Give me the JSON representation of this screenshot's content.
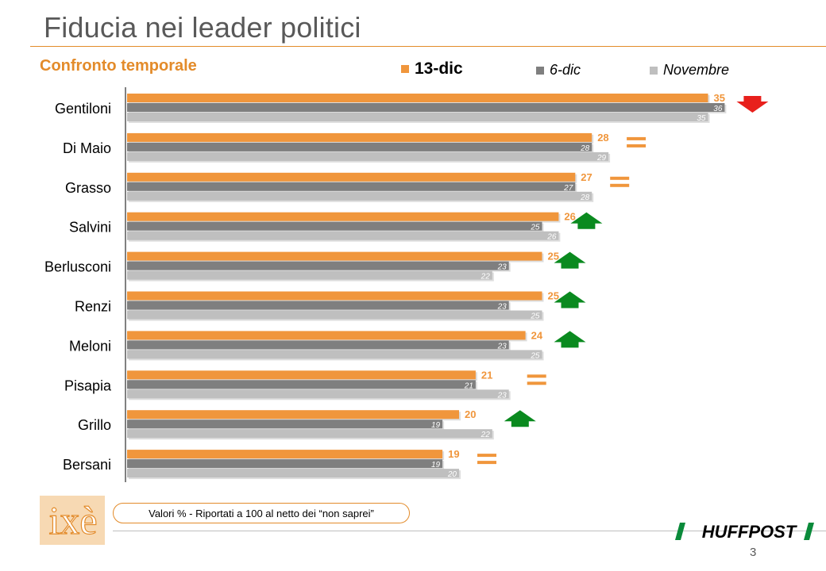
{
  "slide": {
    "title": "Fiducia nei leader politici",
    "subtitle": "Confronto temporale",
    "note": "Valori % - Riportati a 100 al netto dei “non saprei”",
    "page_number": "3",
    "logo_text": "ixè",
    "brand_text": "HUFFPOST"
  },
  "colors": {
    "accent": "#e38b2a",
    "series_13dic": "#f0963c",
    "series_6dic": "#7f7f7f",
    "series_novembre": "#bfbfbf",
    "arrow_up": "#0a8a1f",
    "arrow_down": "#e8201c",
    "equal": "#f0963c"
  },
  "chart_data": {
    "type": "bar",
    "orientation": "horizontal",
    "categories": [
      "Gentiloni",
      "Di Maio",
      "Grasso",
      "Salvini",
      "Berlusconi",
      "Renzi",
      "Meloni",
      "Pisapia",
      "Grillo",
      "Bersani"
    ],
    "series": [
      {
        "name": "13-dic",
        "values": [
          35,
          28,
          27,
          26,
          25,
          25,
          24,
          21,
          20,
          19
        ]
      },
      {
        "name": "6-dic",
        "values": [
          36,
          28,
          27,
          25,
          23,
          23,
          23,
          21,
          19,
          19
        ]
      },
      {
        "name": "Novembre",
        "values": [
          35,
          29,
          28,
          26,
          22,
          25,
          25,
          23,
          22,
          20
        ]
      }
    ],
    "trend_icons": [
      "arrow-down",
      "equal",
      "equal",
      "arrow-up",
      "arrow-up",
      "arrow-up",
      "arrow-up",
      "equal",
      "arrow-up",
      "equal"
    ],
    "xlim": [
      0,
      36
    ],
    "legend_position": "top",
    "data_labels": true,
    "grid": false
  }
}
